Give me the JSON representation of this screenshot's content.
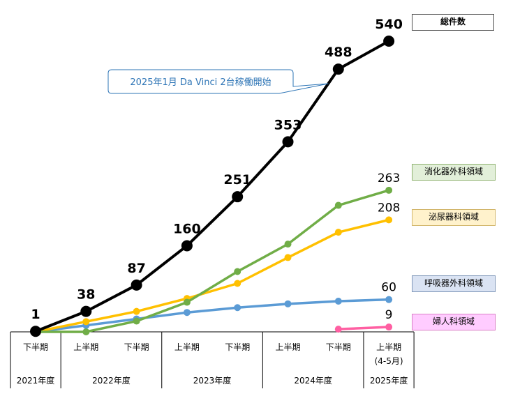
{
  "chart_data": {
    "type": "line",
    "title": "",
    "xlabel": "",
    "ylabel": "",
    "ylim": [
      0,
      540
    ],
    "grid": false,
    "legend_position": "right",
    "categories": [
      {
        "half": "下半期",
        "year": "2021年度"
      },
      {
        "half": "上半期",
        "year": "2022年度"
      },
      {
        "half": "下半期",
        "year": "2022年度"
      },
      {
        "half": "上半期",
        "year": "2023年度"
      },
      {
        "half": "下半期",
        "year": "2023年度"
      },
      {
        "half": "上半期",
        "year": "2024年度"
      },
      {
        "half": "下半期",
        "year": "2024年度"
      },
      {
        "half": "上半期",
        "sub": "(4-5月)",
        "year": "2025年度"
      }
    ],
    "year_groups": [
      {
        "label": "2021年度",
        "start": 0,
        "end": 0
      },
      {
        "label": "2022年度",
        "start": 1,
        "end": 2
      },
      {
        "label": "2023年度",
        "start": 3,
        "end": 4
      },
      {
        "label": "2024年度",
        "start": 5,
        "end": 6
      },
      {
        "label": "2025年度",
        "start": 7,
        "end": 7
      }
    ],
    "series": [
      {
        "name": "総件数",
        "color": "#000000",
        "width": 4,
        "marker": 8,
        "values": [
          1,
          38,
          87,
          160,
          251,
          353,
          488,
          540
        ],
        "labels": [
          "1",
          "38",
          "87",
          "160",
          "251",
          "353",
          "488",
          "540"
        ],
        "label_bold": true
      },
      {
        "name": "消化器外科領域",
        "color": "#70ad47",
        "width": 3.5,
        "marker": 5,
        "values": [
          0,
          0,
          20,
          55,
          112,
          163,
          235,
          263
        ],
        "labels": [
          "",
          "",
          "",
          "",
          "",
          "",
          "",
          "263"
        ],
        "label_bold": false
      },
      {
        "name": "泌尿器科領域",
        "color": "#ffc000",
        "width": 3.5,
        "marker": 5,
        "values": [
          0,
          19,
          38,
          62,
          90,
          138,
          185,
          208
        ],
        "labels": [
          "",
          "",
          "",
          "",
          "",
          "",
          "",
          "208"
        ],
        "label_bold": false
      },
      {
        "name": "呼吸器外科領域",
        "color": "#5b9bd5",
        "width": 3.5,
        "marker": 5,
        "values": [
          0,
          12,
          24,
          36,
          45,
          52,
          57,
          60
        ],
        "labels": [
          "",
          "",
          "",
          "",
          "",
          "",
          "",
          "60"
        ],
        "label_bold": false
      },
      {
        "name": "婦人科領域",
        "color": "#ff5fa2",
        "width": 3.5,
        "marker": 5,
        "values": [
          null,
          null,
          null,
          null,
          null,
          null,
          5,
          9
        ],
        "labels": [
          "",
          "",
          "",
          "",
          "",
          "",
          "",
          "9"
        ],
        "label_bold": false
      }
    ],
    "annotation": {
      "text": "2025年1月 Da Vinci  2台稼働開始",
      "target_index": 5.8
    }
  },
  "legend": {
    "total": "総件数",
    "digestive": "消化器外科領域",
    "urology": "泌尿器科領域",
    "respiratory": "呼吸器外科領域",
    "gynecology": "婦人科領域"
  }
}
